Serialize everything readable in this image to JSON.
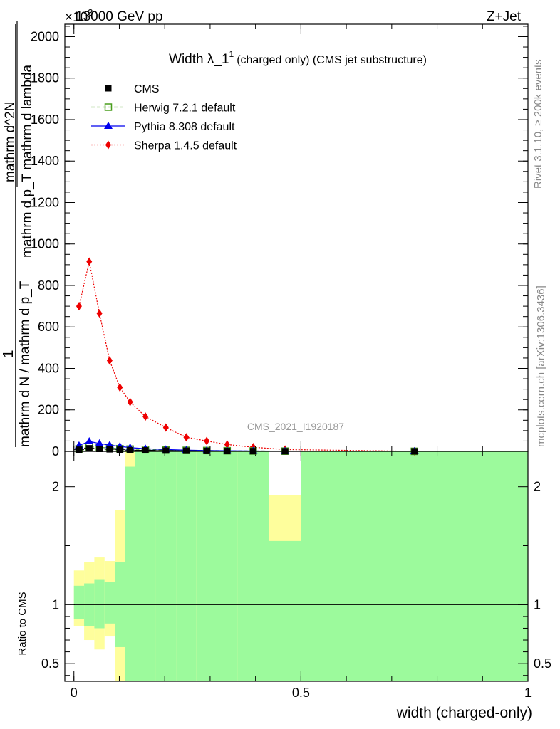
{
  "header": {
    "left": "13000 GeV pp",
    "right": "Z+Jet",
    "exponent": "×10",
    "exponent_power": "3"
  },
  "side_text": {
    "rivet": "Rivet 3.1.10, ≥ 200k events",
    "mcplots": "mcplots.cern.ch [arXiv:1306.3436]"
  },
  "watermark": "CMS_2021_I1920187",
  "main_ylabel": {
    "numerator": "1",
    "denominator": "mathrm d N / mathrm d p_T",
    "frac2_num": "mathrm d^2N",
    "frac2_den": "mathrm d p_T mathrm d lambda"
  },
  "ratio_ylabel": "Ratio to CMS",
  "xlabel": "width (charged-only)",
  "colors": {
    "cms": "#000000",
    "herwig": "#4a9e1e",
    "pythia": "#0000ee",
    "sherpa": "#ee0000",
    "band_inner": "#9cfa9c",
    "band_outer": "#fefe9c"
  },
  "chart_data": [
    {
      "type": "line",
      "title": "Width λ_1",
      "title_sup": "1",
      "title_suffix": "(charged only) (CMS jet substructure)",
      "xlim": [
        -0.02,
        1.0
      ],
      "ylim": [
        0,
        2060
      ],
      "yscale_note": "×10³",
      "x_ticks": [
        0,
        0.5,
        1
      ],
      "y_ticks": [
        0,
        200,
        400,
        600,
        800,
        1000,
        1200,
        1400,
        1600,
        1800,
        2000
      ],
      "y_tick_labels": [
        "0",
        "200",
        "400",
        "600",
        "800",
        "1000",
        "1200",
        "1400",
        "1600",
        "1800",
        "2000"
      ],
      "bin_edges": [
        0,
        0.0225,
        0.045,
        0.0675,
        0.09,
        0.1125,
        0.135,
        0.18,
        0.225,
        0.27,
        0.315,
        0.36,
        0.43,
        0.5,
        1.0
      ],
      "bin_centers": [
        0.01125,
        0.03375,
        0.05625,
        0.07875,
        0.10125,
        0.12375,
        0.1575,
        0.2025,
        0.2475,
        0.2925,
        0.3375,
        0.395,
        0.465,
        0.75
      ],
      "legend": [
        "CMS",
        "Herwig 7.2.1 default",
        "Pythia 8.308 default",
        "Sherpa 1.4.5 default"
      ],
      "series": [
        {
          "name": "CMS",
          "marker": "square",
          "values": [
            8,
            15,
            12,
            10,
            8,
            6,
            5,
            4,
            3,
            2,
            1.5,
            1,
            0.5,
            0.2
          ]
        },
        {
          "name": "Herwig 7.2.1 default",
          "marker": "open-square",
          "values": [
            12,
            22,
            19,
            16,
            13,
            11,
            9,
            7,
            5,
            4,
            3,
            2,
            1,
            0.3
          ]
        },
        {
          "name": "Pythia 8.308 default",
          "marker": "triangle",
          "values": [
            28,
            48,
            38,
            30,
            24,
            18,
            13,
            9,
            6,
            4,
            3,
            2,
            1,
            0.3
          ]
        },
        {
          "name": "Sherpa 1.4.5 default",
          "marker": "diamond",
          "values": [
            700,
            915,
            665,
            438,
            308,
            238,
            168,
            115,
            68,
            50,
            33,
            20,
            9,
            0.4
          ]
        }
      ]
    },
    {
      "type": "area",
      "title": "Ratio to CMS",
      "xlim": [
        -0.02,
        1.0
      ],
      "ylim": [
        0.35,
        2.3
      ],
      "y_ticks": [
        0.5,
        1,
        2
      ],
      "y_tick_labels": [
        "0.5",
        "1",
        "2"
      ],
      "reference": 1.0,
      "bin_edges": [
        0,
        0.0225,
        0.045,
        0.0675,
        0.09,
        0.1125,
        0.135,
        0.18,
        0.225,
        0.27,
        0.315,
        0.36,
        0.43,
        0.5,
        1.0
      ],
      "outer_band": {
        "low": [
          0.82,
          0.7,
          0.62,
          0.73,
          0.35,
          0.35,
          0.35,
          0.35,
          0.35,
          0.35,
          0.35,
          0.35,
          0.54,
          0.35
        ],
        "high": [
          1.29,
          1.36,
          1.4,
          1.37,
          1.8,
          2.3,
          2.3,
          2.3,
          2.3,
          2.3,
          2.19,
          2.3,
          1.93,
          2.3
        ]
      },
      "inner_band": {
        "low": [
          0.88,
          0.82,
          0.8,
          0.84,
          0.64,
          0.35,
          0.35,
          0.35,
          0.35,
          0.35,
          0.35,
          0.35,
          0.35,
          0.35
        ],
        "high": [
          1.16,
          1.18,
          1.21,
          1.19,
          1.36,
          2.17,
          2.3,
          2.3,
          2.3,
          2.3,
          2.3,
          2.3,
          1.54,
          2.3
        ]
      },
      "empty_region": [
        0.43,
        0.5
      ]
    }
  ]
}
